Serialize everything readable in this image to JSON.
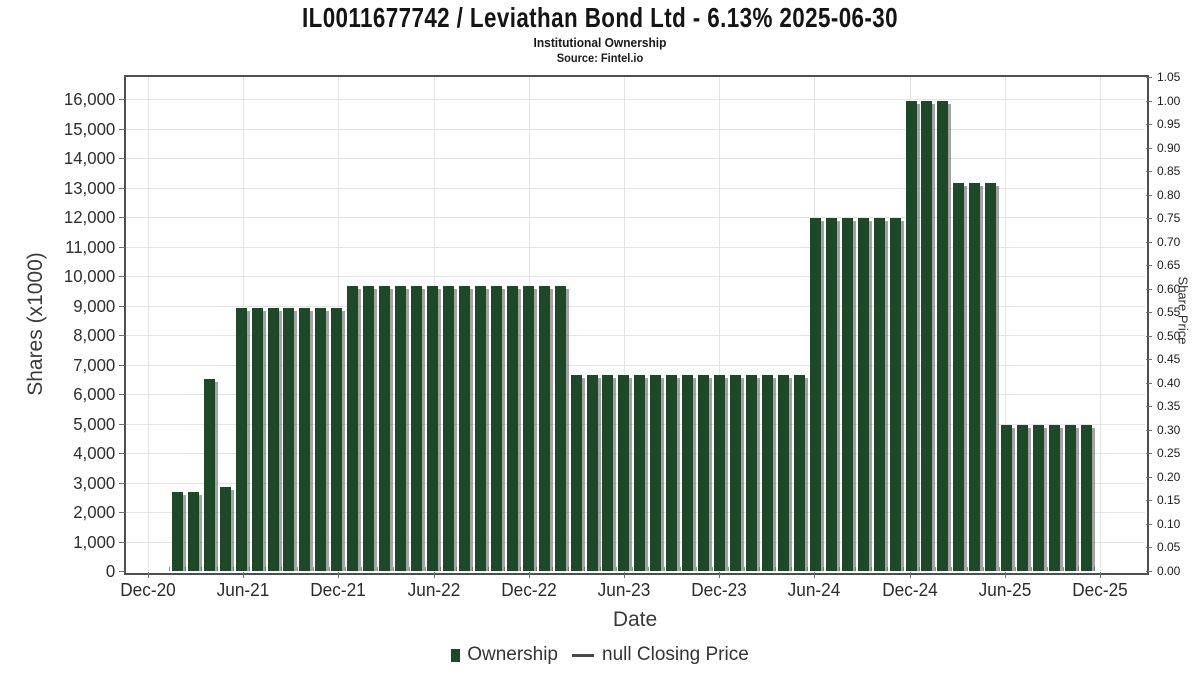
{
  "title": "IL0011677742 / Leviathan Bond Ltd - 6.13% 2025-06-30",
  "subtitle": "Institutional Ownership",
  "source": "Source: Fintel.io",
  "colors": {
    "bar": "#1d4928",
    "bar_shadow": "#5a5a5a",
    "grid": "#e4e4e4",
    "plot_border": "#4f4f4f",
    "text": "#2e2e2e"
  },
  "left_axis": {
    "label": "Shares (x1000)",
    "ticks": [
      "0",
      "1,000",
      "2,000",
      "3,000",
      "4,000",
      "5,000",
      "6,000",
      "7,000",
      "8,000",
      "9,000",
      "10,000",
      "11,000",
      "12,000",
      "13,000",
      "14,000",
      "15,000",
      "16,000"
    ]
  },
  "right_axis": {
    "label": "Share Price",
    "ticks": [
      "0.00",
      "0.05",
      "0.10",
      "0.15",
      "0.20",
      "0.25",
      "0.30",
      "0.35",
      "0.40",
      "0.45",
      "0.50",
      "0.55",
      "0.60",
      "0.65",
      "0.70",
      "0.75",
      "0.80",
      "0.85",
      "0.90",
      "0.95",
      "1.00",
      "1.05"
    ]
  },
  "x_axis": {
    "label": "Date",
    "ticks": [
      "Dec-20",
      "Jun-21",
      "Dec-21",
      "Jun-22",
      "Dec-22",
      "Jun-23",
      "Dec-23",
      "Jun-24",
      "Dec-24",
      "Jun-25",
      "Dec-25"
    ]
  },
  "legend": {
    "ownership_label": "Ownership",
    "price_label": "null Closing Price"
  },
  "chart_data": {
    "type": "bar",
    "title": "IL0011677742 / Leviathan Bond Ltd - 6.13% 2025-06-30",
    "subtitle": "Institutional Ownership",
    "source": "Source: Fintel.io",
    "xlabel": "Date",
    "ylabel": "Shares (x1000)",
    "y2label": "Share Price",
    "ylim": [
      0,
      16750
    ],
    "y2lim": [
      0,
      1.05
    ],
    "grid": true,
    "legend_position": "bottom",
    "x_tick_labels": [
      "Dec-20",
      "Jun-21",
      "Dec-21",
      "Jun-22",
      "Dec-22",
      "Jun-23",
      "Dec-23",
      "Jun-24",
      "Dec-24",
      "Jun-25",
      "Dec-25"
    ],
    "categories": [
      "Feb-21",
      "Mar-21",
      "Apr-21",
      "May-21",
      "Jun-21",
      "Jul-21",
      "Aug-21",
      "Sep-21",
      "Oct-21",
      "Nov-21",
      "Dec-21",
      "Jan-22",
      "Feb-22",
      "Mar-22",
      "Apr-22",
      "May-22",
      "Jun-22",
      "Jul-22",
      "Aug-22",
      "Sep-22",
      "Oct-22",
      "Nov-22",
      "Dec-22",
      "Jan-23",
      "Feb-23",
      "Mar-23",
      "Apr-23",
      "May-23",
      "Jun-23",
      "Jul-23",
      "Aug-23",
      "Sep-23",
      "Oct-23",
      "Nov-23",
      "Dec-23",
      "Jan-24",
      "Feb-24",
      "Mar-24",
      "Apr-24",
      "May-24",
      "Jun-24",
      "Jul-24",
      "Aug-24",
      "Sep-24",
      "Oct-24",
      "Nov-24",
      "Dec-24",
      "Jan-25",
      "Feb-25",
      "Mar-25",
      "Apr-25",
      "May-25",
      "Jun-25",
      "Jul-25",
      "Aug-25",
      "Sep-25",
      "Oct-25",
      "Nov-25"
    ],
    "series": [
      {
        "name": "Ownership",
        "values": [
          2680,
          2680,
          6500,
          2840,
          8940,
          8940,
          8940,
          8940,
          8940,
          8940,
          8940,
          9670,
          9670,
          9670,
          9670,
          9670,
          9670,
          9670,
          9670,
          9670,
          9670,
          9670,
          9670,
          9670,
          9670,
          6640,
          6640,
          6640,
          6640,
          6640,
          6640,
          6640,
          6640,
          6640,
          6640,
          6640,
          6640,
          6640,
          6640,
          6640,
          11980,
          11980,
          11980,
          11980,
          11980,
          11980,
          15950,
          15950,
          15950,
          13160,
          13160,
          13160,
          4940,
          4940,
          4940,
          4940,
          4940,
          4940
        ]
      },
      {
        "name": "null Closing Price",
        "values": []
      }
    ]
  }
}
